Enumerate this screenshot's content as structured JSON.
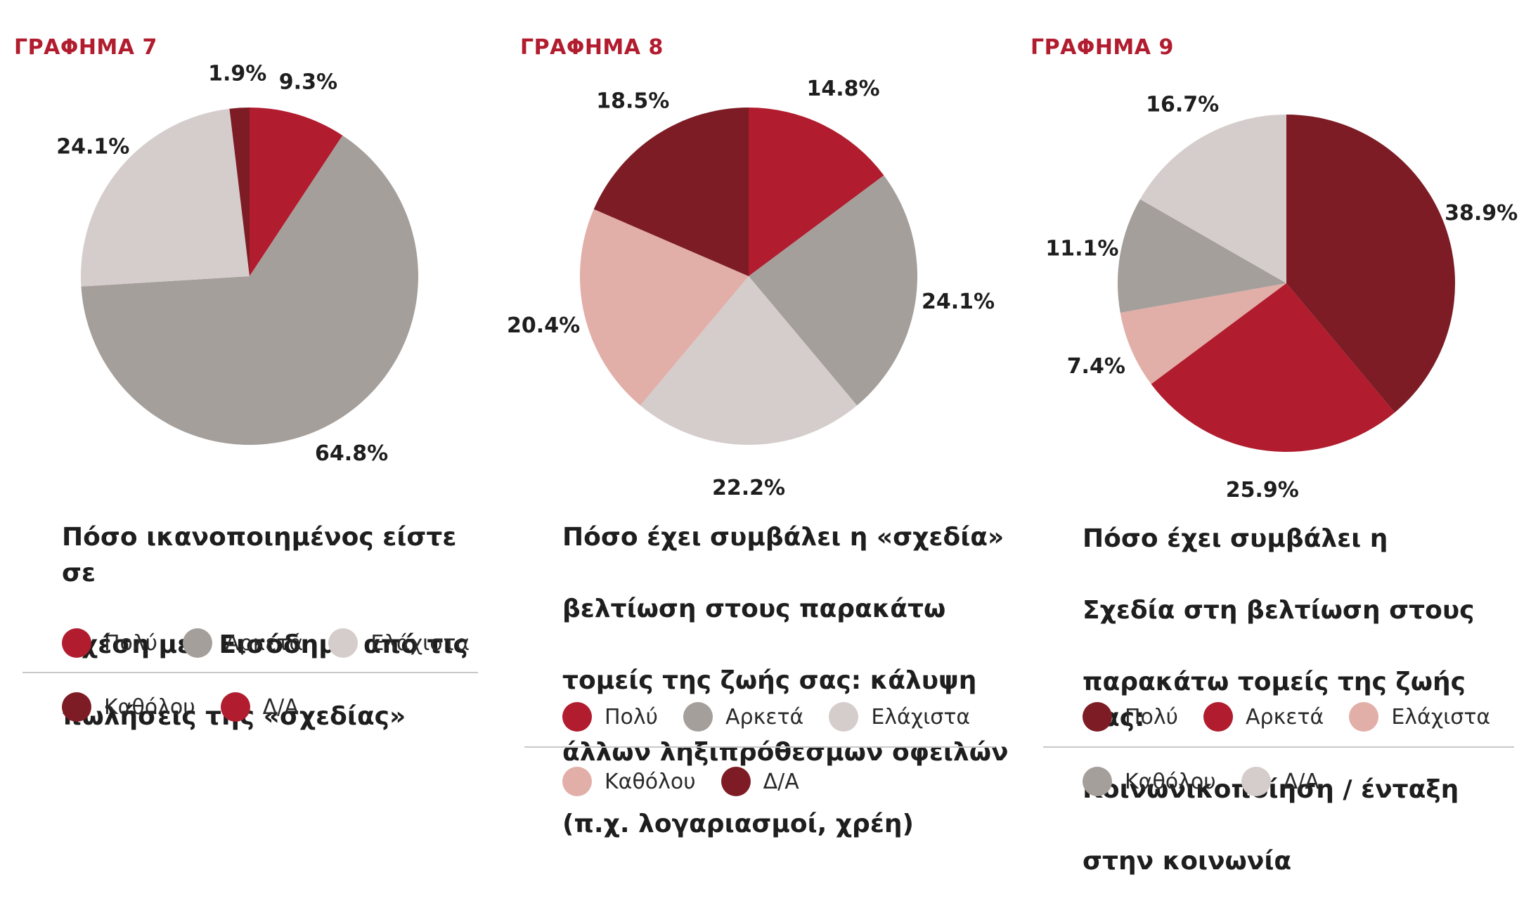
{
  "colors": {
    "red": "#b11c2e",
    "maroon": "#7d1c25",
    "warm_gray": "#a59f9b",
    "light_gray": "#d5cdcc",
    "pink": "#e2aea8"
  },
  "chart_data": [
    {
      "type": "pie",
      "heading": "ΓΡΑΦΗΜΑ 7",
      "title": "Πόσο ικανοποιημένος είστε σε σχέση με : Εισόδημα από τις πωλήσεις της «σχεδίας»",
      "title_lines": [
        "Πόσο ικανοποιημένος είστε σε",
        "σχέση με : Εισόδημα από τις",
        "πωλήσεις της «σχεδίας»"
      ],
      "legend": [
        {
          "label": "Πολύ",
          "color": "#b11c2e"
        },
        {
          "label": "Αρκετά",
          "color": "#a59f9b"
        },
        {
          "label": "Ελάχιστα",
          "color": "#d5cdcc"
        },
        {
          "label": "Καθόλου",
          "color": "#7d1c25"
        },
        {
          "label": "Δ/Α",
          "color": "#b11c2e"
        }
      ],
      "slices": [
        {
          "category": "Πολύ",
          "value": 9.3,
          "label": "9.3%",
          "color": "#b11c2e"
        },
        {
          "category": "Αρκετά",
          "value": 64.8,
          "label": "64.8%",
          "color": "#a59f9b"
        },
        {
          "category": "Ελάχιστα",
          "value": 24.1,
          "label": "24.1%",
          "color": "#d5cdcc"
        },
        {
          "category": "Καθόλου",
          "value": 1.9,
          "label": "1.9%",
          "color": "#7d1c25"
        }
      ]
    },
    {
      "type": "pie",
      "heading": "ΓΡΑΦΗΜΑ 8",
      "title": "Πόσο έχει συμβάλει η «σχεδία» βελτίωση στους παρακάτω τομείς της ζωής σας: κάλυψη άλλων ληξιπρόθεσμων οφειλών (π.χ. λογαριασμοί, χρέη)",
      "title_lines": [
        "Πόσο έχει συμβάλει η «σχεδία»",
        "βελτίωση στους παρακάτω",
        "τομείς της ζωής σας: κάλυψη",
        "άλλων ληξιπρόθεσμων οφειλών",
        "(π.χ. λογαριασμοί, χρέη)"
      ],
      "legend": [
        {
          "label": "Πολύ",
          "color": "#b11c2e"
        },
        {
          "label": "Αρκετά",
          "color": "#a59f9b"
        },
        {
          "label": "Ελάχιστα",
          "color": "#d5cdcc"
        },
        {
          "label": "Καθόλου",
          "color": "#e2aea8"
        },
        {
          "label": "Δ/Α",
          "color": "#7d1c25"
        }
      ],
      "slices": [
        {
          "category": "Πολύ",
          "value": 14.8,
          "label": "14.8%",
          "color": "#b11c2e"
        },
        {
          "category": "Αρκετά",
          "value": 24.1,
          "label": "24.1%",
          "color": "#a59f9b"
        },
        {
          "category": "Ελάχιστα",
          "value": 22.2,
          "label": "22.2%",
          "color": "#d5cdcc"
        },
        {
          "category": "Καθόλου",
          "value": 20.4,
          "label": "20.4%",
          "color": "#e2aea8"
        },
        {
          "category": "Δ/Α",
          "value": 18.5,
          "label": "18.5%",
          "color": "#7d1c25"
        }
      ]
    },
    {
      "type": "pie",
      "heading": "ΓΡΑΦΗΜΑ 9",
      "title": "Πόσο έχει συμβάλει η Σχεδία στη βελτίωση στους παρακάτω τομείς της ζωής σας: Κοινωνικοποίηση / ένταξη στην κοινωνία",
      "title_lines": [
        "Πόσο έχει συμβάλει η",
        "Σχεδία στη βελτίωση στους",
        "παρακάτω τομείς της ζωής σας:",
        "Κοινωνικοποίηση / ένταξη",
        "στην κοινωνία"
      ],
      "legend": [
        {
          "label": "Πολύ",
          "color": "#7d1c25"
        },
        {
          "label": "Αρκετά",
          "color": "#b11c2e"
        },
        {
          "label": "Ελάχιστα",
          "color": "#e2aea8"
        },
        {
          "label": "Καθόλου",
          "color": "#a59f9b"
        },
        {
          "label": "Δ/Α",
          "color": "#d5cdcc"
        }
      ],
      "slices": [
        {
          "category": "Πολύ",
          "value": 38.9,
          "label": "38.9%",
          "color": "#7d1c25"
        },
        {
          "category": "Αρκετά",
          "value": 25.9,
          "label": "25.9%",
          "color": "#b11c2e"
        },
        {
          "category": "Ελάχιστα",
          "value": 7.4,
          "label": "7.4%",
          "color": "#e2aea8"
        },
        {
          "category": "Καθόλου",
          "value": 11.1,
          "label": "11.1%",
          "color": "#a59f9b"
        },
        {
          "category": "Δ/Α",
          "value": 16.7,
          "label": "16.7%",
          "color": "#d5cdcc"
        }
      ]
    }
  ]
}
